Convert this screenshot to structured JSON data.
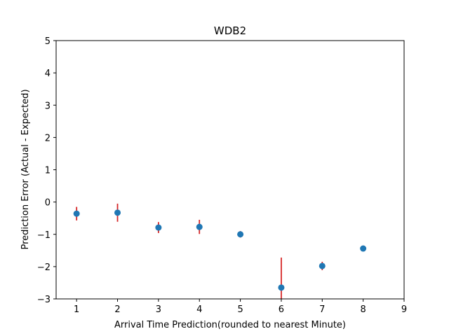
{
  "chart_data": {
    "type": "scatter",
    "title": "WDB2",
    "xlabel": "Arrival Time Prediction(rounded to nearest Minute)",
    "ylabel": "Prediction Error (Actual - Expected)",
    "xlim": [
      0.5,
      9
    ],
    "ylim": [
      -3,
      5
    ],
    "xticks": [
      1,
      2,
      3,
      4,
      5,
      6,
      7,
      8,
      9
    ],
    "yticks": [
      -3,
      -2,
      -1,
      0,
      1,
      2,
      3,
      4,
      5
    ],
    "grid": false,
    "colors": {
      "marker": "#1f77b4",
      "errorbar": "#d62728"
    },
    "points": [
      {
        "x": 1,
        "y": -0.36,
        "err": 0.21
      },
      {
        "x": 2,
        "y": -0.33,
        "err": 0.28
      },
      {
        "x": 3,
        "y": -0.79,
        "err": 0.17
      },
      {
        "x": 4,
        "y": -0.77,
        "err": 0.22
      },
      {
        "x": 5,
        "y": -1.0,
        "err": 0.1
      },
      {
        "x": 6,
        "y": -2.65,
        "err": 0.93
      },
      {
        "x": 7,
        "y": -1.98,
        "err": 0.13
      },
      {
        "x": 8,
        "y": -1.44,
        "err": 0.0
      }
    ]
  }
}
